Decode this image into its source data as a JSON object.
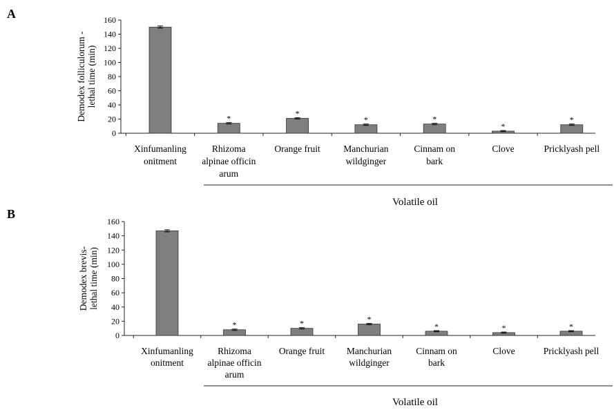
{
  "chart_data": [
    {
      "type": "bar",
      "panel_label": "A",
      "categories": [
        [
          "Xinfumanling",
          "onitment"
        ],
        [
          "Rhizoma",
          "alpinae officin",
          "arum"
        ],
        [
          "Orange fruit"
        ],
        [
          "Manchurian",
          "wildginger"
        ],
        [
          "Cinnam on",
          "bark"
        ],
        [
          "Clove"
        ],
        [
          "Pricklyash pell"
        ]
      ],
      "values": [
        150,
        14,
        21,
        12,
        13,
        3,
        12
      ],
      "errors": [
        1.5,
        1,
        1,
        1,
        1,
        0.8,
        1
      ],
      "significance": [
        "",
        "*",
        "*",
        "*",
        "*",
        "*",
        "*"
      ],
      "ylabel": [
        "Demodex folliculorum -",
        "lethal time (min)"
      ],
      "ylim": [
        0,
        160
      ],
      "yticks": [
        0,
        20,
        40,
        60,
        80,
        100,
        120,
        140,
        160
      ],
      "group_label": "Volatile oil",
      "bar_color": "#7f7f7f"
    },
    {
      "type": "bar",
      "panel_label": "B",
      "categories": [
        [
          "Xinfumanling",
          "onitment"
        ],
        [
          "Rhizoma",
          "alpinae officin",
          "arum"
        ],
        [
          "Orange fruit"
        ],
        [
          "Manchurian",
          "wildginger"
        ],
        [
          "Cinnam on",
          "bark"
        ],
        [
          "Clove"
        ],
        [
          "Pricklyash pell"
        ]
      ],
      "values": [
        147,
        8,
        10,
        16,
        6,
        4,
        6
      ],
      "errors": [
        1.5,
        1,
        1,
        1,
        0.8,
        0.8,
        0.8
      ],
      "significance": [
        "",
        "*",
        "*",
        "*",
        "*",
        "*",
        "*"
      ],
      "ylabel": [
        "Demodex brevis-",
        "lethal time (min)"
      ],
      "ylim": [
        0,
        160
      ],
      "yticks": [
        0,
        20,
        40,
        60,
        80,
        100,
        120,
        140,
        160
      ],
      "group_label": "Volatile oil",
      "bar_color": "#7f7f7f"
    }
  ]
}
